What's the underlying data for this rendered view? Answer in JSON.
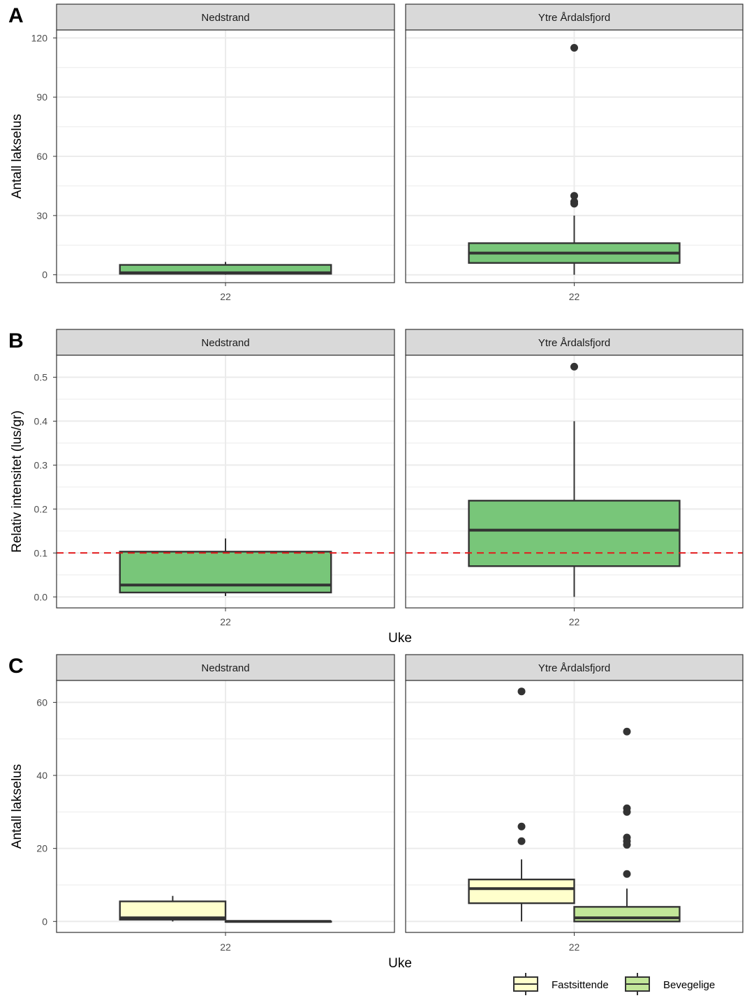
{
  "figure": {
    "facets": [
      "Nedstrand",
      "Ytre Årdalsfjord"
    ],
    "x_tick": "22"
  },
  "colors": {
    "bevegelige_dark": "#78C679",
    "bevegelige_light": "#C2E699",
    "fastsittende": "#FFFFCC",
    "threshold_line": "#E31A1C",
    "strip_bg": "#D9D9D9",
    "grid": "#EBEBEB",
    "box_stroke": "#333333"
  },
  "chart_data": [
    {
      "panel_label": "A",
      "type": "boxplot",
      "ylabel": "Antall lakselus",
      "xlabel": "",
      "ylim": [
        -4,
        124
      ],
      "yticks": [
        0,
        30,
        60,
        90,
        120
      ],
      "ytick_labels": [
        "0",
        "30",
        "60",
        "90",
        "120"
      ],
      "minor_yticks": [
        15,
        45,
        75,
        105
      ],
      "x_label_shown": false,
      "facets": [
        {
          "name": "Nedstrand",
          "boxes": [
            {
              "series": "Bevegelige",
              "fill": "#78C679",
              "lower_whisker": 0,
              "q1": 0.5,
              "median": 1,
              "q3": 5,
              "upper_whisker": 6.5,
              "outliers": []
            }
          ]
        },
        {
          "name": "Ytre Årdalsfjord",
          "boxes": [
            {
              "series": "Bevegelige",
              "fill": "#78C679",
              "lower_whisker": 0,
              "q1": 6,
              "median": 11,
              "q3": 16,
              "upper_whisker": 30,
              "outliers": [
                115,
                40,
                37,
                36
              ]
            }
          ]
        }
      ]
    },
    {
      "panel_label": "B",
      "type": "boxplot",
      "ylabel": "Relativ intensitet (lus/gr)",
      "xlabel": "Uke",
      "ylim": [
        -0.025,
        0.55
      ],
      "yticks": [
        0.0,
        0.1,
        0.2,
        0.3,
        0.4,
        0.5
      ],
      "ytick_labels": [
        "0.0",
        "0.1",
        "0.2",
        "0.3",
        "0.4",
        "0.5"
      ],
      "minor_yticks": [
        0.05,
        0.15,
        0.25,
        0.35,
        0.45
      ],
      "hline": 0.1,
      "x_label_shown": true,
      "facets": [
        {
          "name": "Nedstrand",
          "boxes": [
            {
              "series": "Bevegelige",
              "fill": "#78C679",
              "lower_whisker": 0.002,
              "q1": 0.01,
              "median": 0.027,
              "q3": 0.103,
              "upper_whisker": 0.133,
              "outliers": []
            }
          ]
        },
        {
          "name": "Ytre Årdalsfjord",
          "boxes": [
            {
              "series": "Bevegelige",
              "fill": "#78C679",
              "lower_whisker": 0.0,
              "q1": 0.07,
              "median": 0.152,
              "q3": 0.219,
              "upper_whisker": 0.4,
              "outliers": [
                0.524
              ]
            }
          ]
        }
      ]
    },
    {
      "panel_label": "C",
      "type": "boxplot",
      "ylabel": "Antall lakselus",
      "xlabel": "Uke",
      "ylim": [
        -3,
        66
      ],
      "yticks": [
        0,
        20,
        40,
        60
      ],
      "ytick_labels": [
        "0",
        "20",
        "40",
        "60"
      ],
      "minor_yticks": [
        10,
        30,
        50
      ],
      "x_label_shown": true,
      "legend": [
        "Fastsittende",
        "Bevegelige"
      ],
      "facets": [
        {
          "name": "Nedstrand",
          "boxes": [
            {
              "series": "Fastsittende",
              "fill": "#FFFFCC",
              "lower_whisker": 0,
              "q1": 0.5,
              "median": 1,
              "q3": 5.5,
              "upper_whisker": 7,
              "outliers": []
            },
            {
              "series": "Bevegelige",
              "fill": "#C2E699",
              "lower_whisker": 0,
              "q1": 0,
              "median": 0,
              "q3": 0,
              "upper_whisker": 0,
              "outliers": []
            }
          ]
        },
        {
          "name": "Ytre Årdalsfjord",
          "boxes": [
            {
              "series": "Fastsittende",
              "fill": "#FFFFCC",
              "lower_whisker": 0,
              "q1": 5,
              "median": 9,
              "q3": 11.5,
              "upper_whisker": 17,
              "outliers": [
                63,
                26,
                22
              ]
            },
            {
              "series": "Bevegelige",
              "fill": "#C2E699",
              "lower_whisker": 0,
              "q1": 0,
              "median": 1,
              "q3": 4,
              "upper_whisker": 9,
              "outliers": [
                52,
                31,
                30,
                23,
                22,
                21,
                13
              ]
            }
          ]
        }
      ]
    }
  ]
}
